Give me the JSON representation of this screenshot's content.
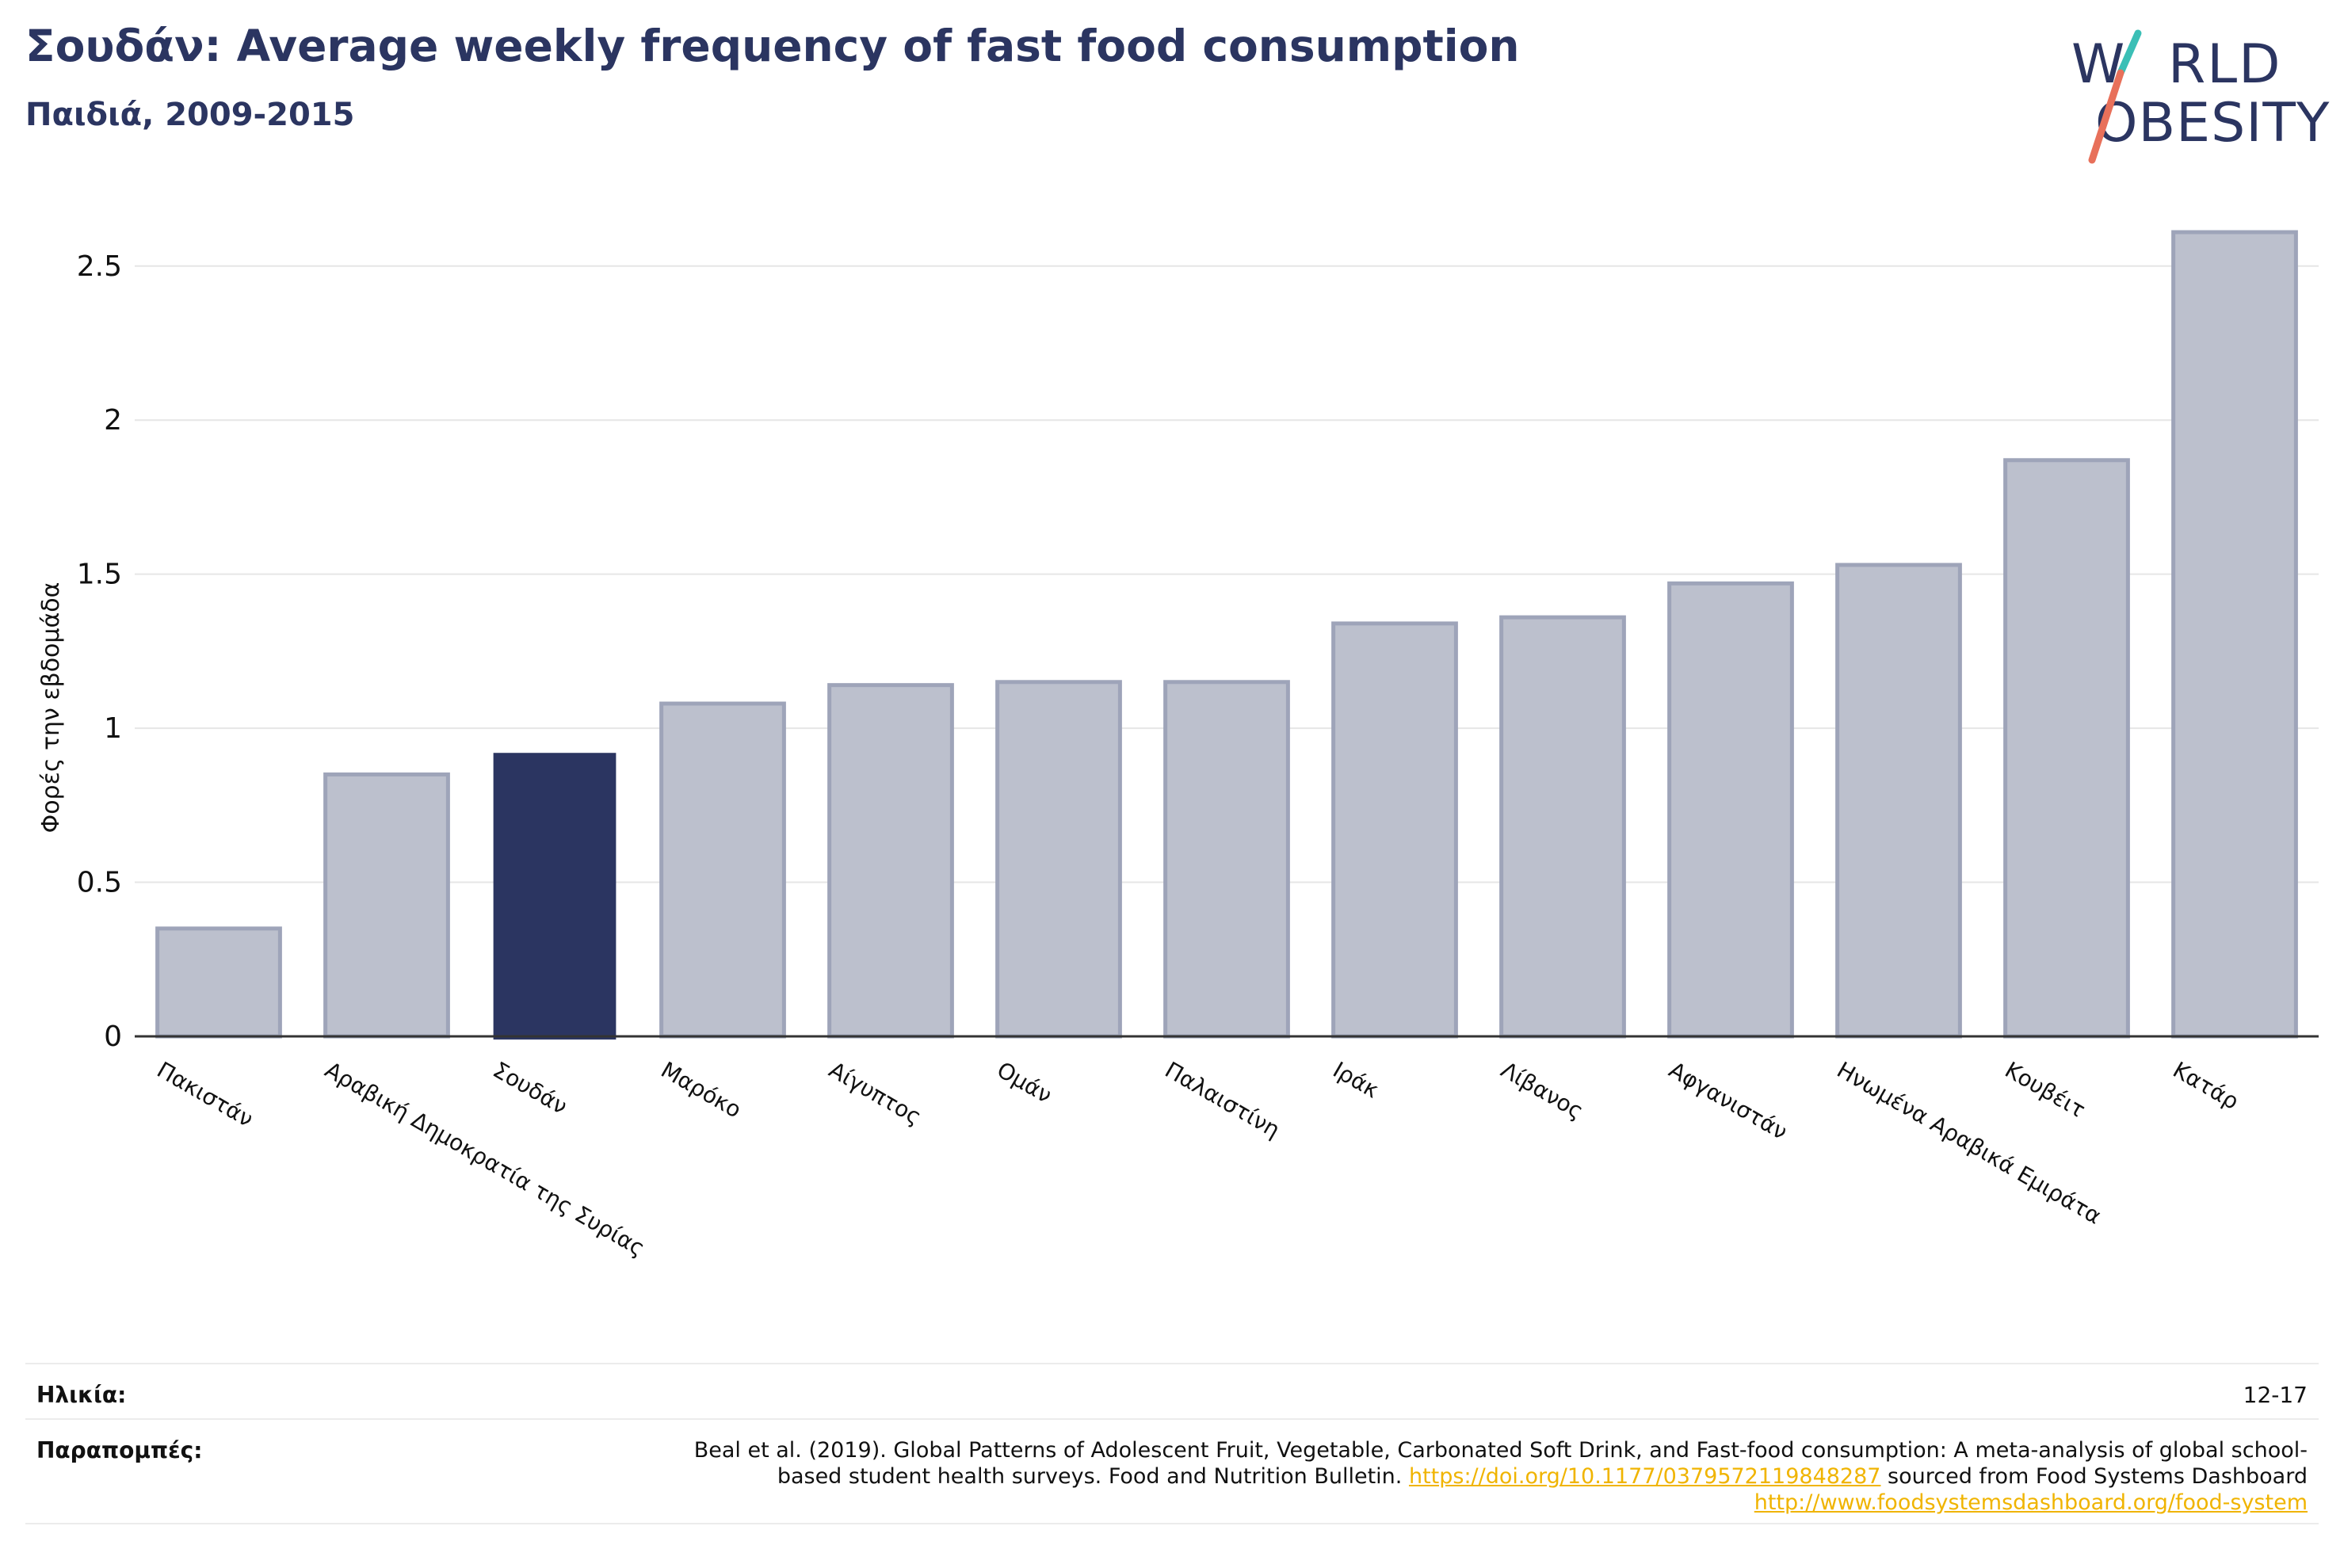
{
  "header": {
    "title": "Σουδάν: Average weekly frequency of fast food consumption",
    "subtitle": "Παιδιά, 2009-2015"
  },
  "logo": {
    "line1": "W RLD",
    "line2": "OBESITY",
    "colors": {
      "text": "#2b3561",
      "slash_top": "#3bbfb6",
      "slash_bottom": "#e8705a"
    }
  },
  "colors": {
    "highlight_bar": "#2b3561",
    "other_bar_fill": "#bcc0cd",
    "other_bar_stroke": "#9ea4b9",
    "grid": "#e6e6e6",
    "axis": "#333333"
  },
  "chart_data": {
    "type": "bar",
    "ylabel": "Φορές την εβδομάδα",
    "ylim": [
      0,
      2.7
    ],
    "yticks": [
      0,
      0.5,
      1,
      1.5,
      2,
      2.5
    ],
    "ytick_labels": [
      "0",
      "0.5",
      "1",
      "1.5",
      "2",
      "2.5"
    ],
    "grid": true,
    "highlight": "Σουδάν",
    "categories": [
      "Πακιστάν",
      "Αραβική Δημοκρατία της Συρίας",
      "Σουδάν",
      "Μαρόκο",
      "Αίγυπτος",
      "Ομάν",
      "Παλαιστίνη",
      "Ιράκ",
      "Λίβανος",
      "Αφγανιστάν",
      "Ηνωμένα Αραβικά Εμιράτα",
      "Κουβέιτ",
      "Κατάρ"
    ],
    "values": [
      0.35,
      0.85,
      0.92,
      1.08,
      1.14,
      1.15,
      1.15,
      1.34,
      1.36,
      1.47,
      1.53,
      1.87,
      2.61
    ]
  },
  "footer": {
    "age_label": "Ηλικία:",
    "age_value": "12-17",
    "refs_label": "Παραπομπές:",
    "ref_text_1": "Beal et al. (2019). Global Patterns of Adolescent Fruit, Vegetable, Carbonated Soft Drink, and Fast-food consumption: A meta-analysis of global school-based student health surveys. Food and Nutrition Bulletin. ",
    "ref_link_1": "https://doi.org/10.1177/0379572119848287",
    "ref_text_2": " sourced from Food Systems Dashboard ",
    "ref_link_2": "http://www.foodsystemsdashboard.org/food-system"
  }
}
